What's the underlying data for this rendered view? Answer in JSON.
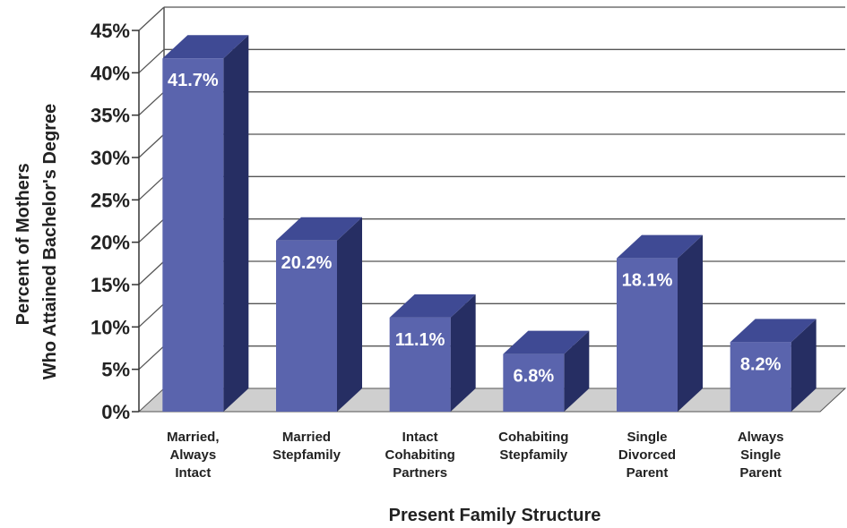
{
  "chart_data": {
    "type": "bar",
    "categories": [
      [
        "Married,",
        "Always",
        "Intact"
      ],
      [
        "Married",
        "Stepfamily"
      ],
      [
        "Intact",
        "Cohabiting",
        "Partners"
      ],
      [
        "Cohabiting",
        "Stepfamily"
      ],
      [
        "Single",
        "Divorced",
        "Parent"
      ],
      [
        "Always",
        "Single",
        "Parent"
      ]
    ],
    "values": [
      41.7,
      20.2,
      11.1,
      6.8,
      18.1,
      8.2
    ],
    "value_labels": [
      "41.7%",
      "20.2%",
      "11.1%",
      "6.8%",
      "18.1%",
      "8.2%"
    ],
    "xlabel": "Present Family Structure",
    "ylabel_lines": [
      "Percent of Mothers",
      "Who Attained Bachelor's Degree"
    ],
    "ylim": [
      0,
      45
    ],
    "yticks": [
      0,
      5,
      10,
      15,
      20,
      25,
      30,
      35,
      40,
      45
    ],
    "ytick_labels": [
      "0%",
      "5%",
      "10%",
      "15%",
      "20%",
      "25%",
      "30%",
      "35%",
      "40%",
      "45%"
    ],
    "grid": true,
    "style": "3d-bar",
    "colors": {
      "bar_front": "#5a64ad",
      "bar_top": "#3f4a94",
      "bar_side": "#262e63",
      "floor": "#cfcfcf",
      "grid": "#555555"
    }
  }
}
